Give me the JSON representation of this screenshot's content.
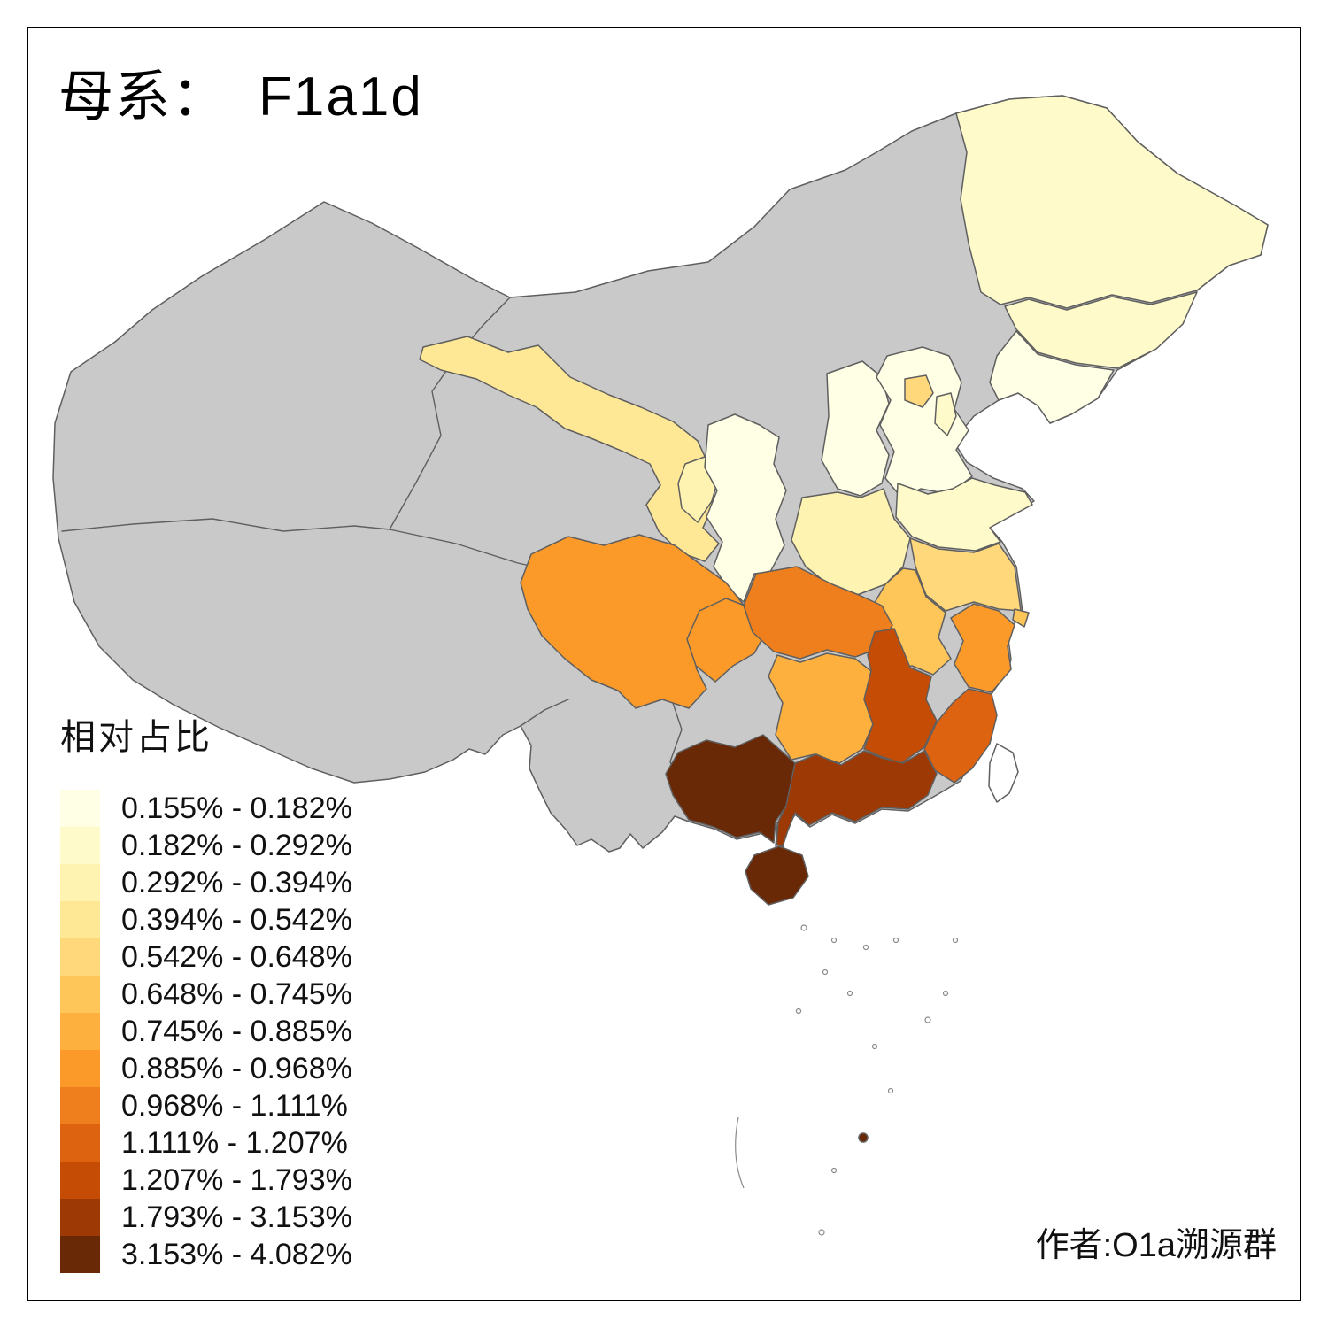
{
  "title": {
    "label_zh": "母系：",
    "value": "F1a1d"
  },
  "author": "作者:O1a溯源群",
  "legend": {
    "title": "相对占比",
    "bins": [
      {
        "label": "0.155% - 0.182%",
        "color": "#FFFFE5"
      },
      {
        "label": "0.182% - 0.292%",
        "color": "#FFFAC9"
      },
      {
        "label": "0.292% - 0.394%",
        "color": "#FEF3B0"
      },
      {
        "label": "0.394% - 0.542%",
        "color": "#FEE795"
      },
      {
        "label": "0.542% - 0.648%",
        "color": "#FED87A"
      },
      {
        "label": "0.648% - 0.745%",
        "color": "#FEC559"
      },
      {
        "label": "0.745% - 0.885%",
        "color": "#FEB03E"
      },
      {
        "label": "0.885% - 0.968%",
        "color": "#FB9929"
      },
      {
        "label": "0.968% - 1.111%",
        "color": "#EF7F1C"
      },
      {
        "label": "1.111% - 1.207%",
        "color": "#DD6310"
      },
      {
        "label": "1.207% - 1.793%",
        "color": "#C54C05"
      },
      {
        "label": "1.793% - 3.153%",
        "color": "#9C3904"
      },
      {
        "label": "3.153% - 4.082%",
        "color": "#692806"
      }
    ]
  },
  "map": {
    "no_data_color": "#C9C9C9",
    "border_color": "#5F5F5F",
    "regions": [
      {
        "id": "no-data-base"
      },
      {
        "id": "heilongjiang",
        "bin": 2
      },
      {
        "id": "jilin",
        "bin": 2
      },
      {
        "id": "liaoning",
        "bin": 1
      },
      {
        "id": "hebei",
        "bin": 1
      },
      {
        "id": "beijing",
        "bin": 5
      },
      {
        "id": "tianjin",
        "bin": 2
      },
      {
        "id": "shanxi",
        "bin": 1
      },
      {
        "id": "shandong",
        "bin": 2
      },
      {
        "id": "henan",
        "bin": 3
      },
      {
        "id": "shaanxi",
        "bin": 1
      },
      {
        "id": "gansu",
        "bin": 4
      },
      {
        "id": "ningxia",
        "bin": 3
      },
      {
        "id": "jiangsu",
        "bin": 5
      },
      {
        "id": "anhui",
        "bin": 6
      },
      {
        "id": "shanghai",
        "bin": 6
      },
      {
        "id": "zhejiang",
        "bin": 8
      },
      {
        "id": "hubei",
        "bin": 9
      },
      {
        "id": "chongqing",
        "bin": 8
      },
      {
        "id": "sichuan",
        "bin": 8
      },
      {
        "id": "hunan",
        "bin": 7
      },
      {
        "id": "jiangxi",
        "bin": 11
      },
      {
        "id": "fujian",
        "bin": 10
      },
      {
        "id": "guangdong",
        "bin": 12
      },
      {
        "id": "guangxi",
        "bin": 13
      },
      {
        "id": "hainan",
        "bin": 13
      },
      {
        "id": "south-sea-island-dark",
        "bin": 13
      },
      {
        "id": "taiwan",
        "fill": "#FFFFFF"
      }
    ]
  }
}
